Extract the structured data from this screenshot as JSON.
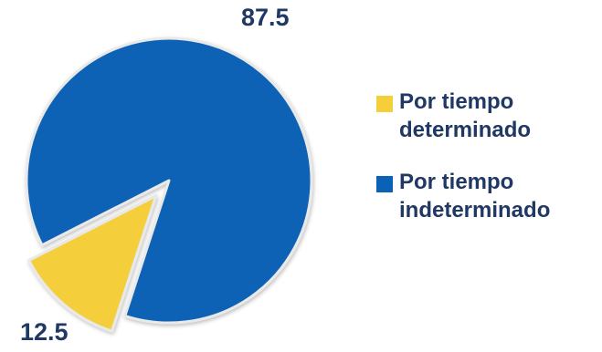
{
  "chart_data": {
    "type": "pie",
    "categories": [
      "Por tiempo determinado",
      "Por tiempo indeterminado"
    ],
    "values": [
      12.5,
      87.5
    ],
    "colors": [
      "#f5cf3a",
      "#0a62b6"
    ],
    "data_labels": [
      "12.5",
      "87.5"
    ],
    "exploded": [
      true,
      false
    ],
    "title": "",
    "legend_position": "right",
    "legend": {
      "items": [
        {
          "line1": "Por tiempo",
          "line2": "determinado",
          "color": "#f5cf3a"
        },
        {
          "line1": "Por tiempo",
          "line2": "indeterminado",
          "color": "#0a62b6"
        }
      ]
    }
  }
}
